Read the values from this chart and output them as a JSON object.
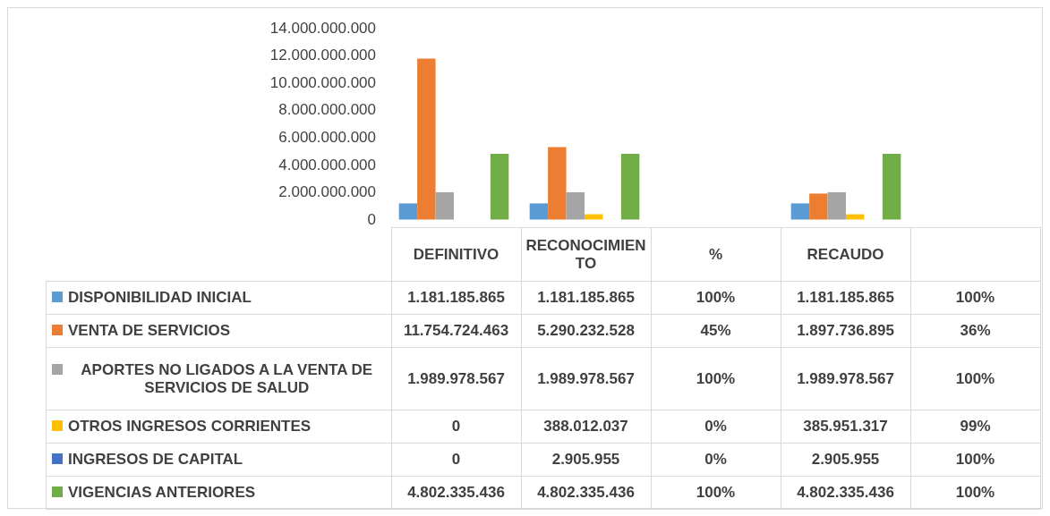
{
  "chart_data": {
    "type": "bar",
    "categories": [
      "DEFINITIVO",
      "RECONOCIMIENTO",
      "%",
      "RECAUDO",
      null
    ],
    "ylim": [
      0,
      14000000000
    ],
    "yticks": [
      0,
      {
        "value": 2000000000,
        "label": "2.000.000.000"
      },
      {
        "value": 4000000000,
        "label": "4.000.000.000"
      },
      {
        "value": 6000000000,
        "label": "6.000.000.000"
      },
      {
        "value": 8000000000,
        "label": "8.000.000.000"
      },
      {
        "value": 10000000000,
        "label": "10.000.000.000"
      },
      {
        "value": 12000000000,
        "label": "12.000.000.000"
      },
      {
        "value": 14000000000,
        "label": "14.000.000.000"
      }
    ],
    "grid": false,
    "legend": "bottom left",
    "series": [
      {
        "name": "DISPONIBILIDAD INICIAL",
        "color": "#5b9bd5",
        "values": [
          1181185865,
          1181185865,
          100,
          1181185865,
          100
        ],
        "value_labels": [
          "1.181.185.865",
          "1.181.185.865",
          "100%",
          "1.181.185.865",
          "100%"
        ]
      },
      {
        "name": "VENTA DE SERVICIOS",
        "color": "#ed7d31",
        "values": [
          11754724463,
          5290232528,
          45,
          1897736895,
          36
        ],
        "value_labels": [
          "11.754.724.463",
          "5.290.232.528",
          "45%",
          "1.897.736.895",
          "36%"
        ]
      },
      {
        "name": "APORTES NO LIGADOS A LA VENTA DE SERVICIOS DE SALUD",
        "color": "#a5a5a5",
        "values": [
          1989978567,
          1989978567,
          100,
          1989978567,
          100
        ],
        "value_labels": [
          "1.989.978.567",
          "1.989.978.567",
          "100%",
          "1.989.978.567",
          "100%"
        ]
      },
      {
        "name": "OTROS INGRESOS CORRIENTES",
        "color": "#ffc000",
        "values": [
          0,
          388012037,
          0,
          385951317,
          99
        ],
        "value_labels": [
          "0",
          "388.012.037",
          "0%",
          "385.951.317",
          "99%"
        ]
      },
      {
        "name": "INGRESOS DE CAPITAL",
        "color": "#4472c4",
        "values": [
          0,
          2905955,
          0,
          2905955,
          100
        ],
        "value_labels": [
          "0",
          "2.905.955",
          "0%",
          "2.905.955",
          "100%"
        ]
      },
      {
        "name": "VIGENCIAS ANTERIORES",
        "color": "#70ad47",
        "values": [
          4802335436,
          4802335436,
          100,
          4802335436,
          100
        ],
        "value_labels": [
          "4.802.335.436",
          "4.802.335.436",
          "100%",
          "4.802.335.436",
          "100%"
        ]
      }
    ]
  }
}
